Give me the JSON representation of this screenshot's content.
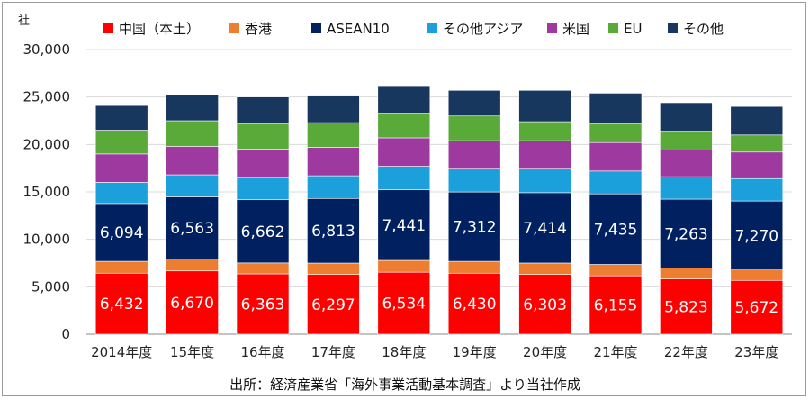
{
  "chart_data": {
    "type": "bar",
    "stacked": true,
    "unit_label": "社",
    "ylim": [
      0,
      30000
    ],
    "yticks": [
      0,
      5000,
      10000,
      15000,
      20000,
      25000,
      30000
    ],
    "ytick_labels": [
      "0",
      "5,000",
      "10,000",
      "15,000",
      "20,000",
      "25,000",
      "30,000"
    ],
    "categories": [
      "2014年度",
      "15年度",
      "16年度",
      "17年度",
      "18年度",
      "19年度",
      "20年度",
      "21年度",
      "22年度",
      "23年度"
    ],
    "series": [
      {
        "name": "中国（本土）",
        "color": "#ff0000",
        "values": [
          6432,
          6670,
          6363,
          6297,
          6534,
          6430,
          6303,
          6155,
          5823,
          5672
        ],
        "labels": [
          "6,432",
          "6,670",
          "6,363",
          "6,297",
          "6,534",
          "6,430",
          "6,303",
          "6,155",
          "5,823",
          "5,672"
        ]
      },
      {
        "name": "香港",
        "color": "#ed7d31",
        "values": [
          1250,
          1250,
          1150,
          1200,
          1250,
          1250,
          1200,
          1200,
          1150,
          1100
        ]
      },
      {
        "name": "ASEAN10",
        "color": "#002060",
        "values": [
          6094,
          6563,
          6662,
          6813,
          7441,
          7312,
          7414,
          7435,
          7263,
          7270
        ],
        "labels": [
          "6,094",
          "6,563",
          "6,662",
          "6,813",
          "7,441",
          "7,312",
          "7,414",
          "7,435",
          "7,263",
          "7,270"
        ]
      },
      {
        "name": "その他アジア",
        "color": "#1ca0dc",
        "values": [
          2224,
          2317,
          2325,
          2390,
          2475,
          2408,
          2483,
          2410,
          2364,
          2358
        ]
      },
      {
        "name": "米国",
        "color": "#9e3a9f",
        "values": [
          3000,
          3000,
          3000,
          3000,
          3000,
          3000,
          3000,
          3000,
          2800,
          2800
        ]
      },
      {
        "name": "EU",
        "color": "#5aaa3a",
        "values": [
          2500,
          2700,
          2700,
          2600,
          2600,
          2600,
          2000,
          2000,
          2000,
          1800
        ]
      },
      {
        "name": "その他",
        "color": "#17375e",
        "values": [
          2600,
          2700,
          2800,
          2800,
          2800,
          2700,
          3300,
          3200,
          3000,
          3000
        ]
      }
    ],
    "source_note": "出所：経済産業省「海外事業活動基本調査」より当社作成"
  }
}
